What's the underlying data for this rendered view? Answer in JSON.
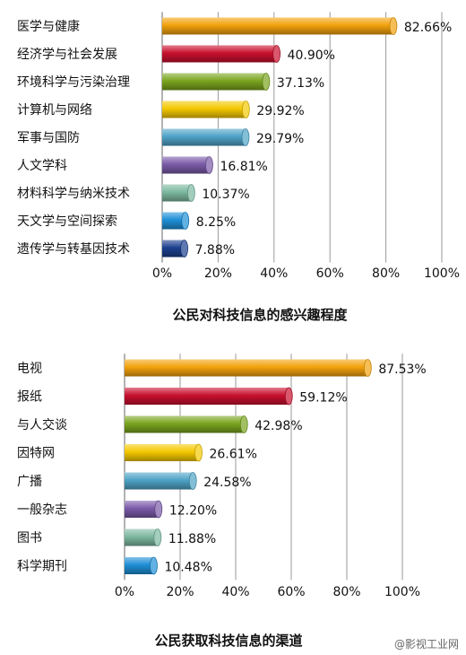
{
  "chart_data": [
    {
      "type": "bar",
      "orientation": "horizontal",
      "title": "公民对科技信息的感兴趣程度",
      "categories": [
        "医学与健康",
        "经济学与社会发展",
        "环境科学与污染治理",
        "计算机与网络",
        "军事与国防",
        "人文学科",
        "材料科学与纳米技术",
        "天文学与空间探索",
        "遗传学与转基因技术"
      ],
      "values": [
        82.66,
        40.9,
        37.13,
        29.92,
        29.79,
        16.81,
        10.37,
        8.25,
        7.88
      ],
      "value_labels": [
        "82.66%",
        "40.90%",
        "37.13%",
        "29.92%",
        "29.79%",
        "16.81%",
        "10.37%",
        "8.25%",
        "7.88%"
      ],
      "bar_colors": [
        "#f2a20c",
        "#c8102e",
        "#7aa51f",
        "#f4c800",
        "#4ea3c6",
        "#7a5aa8",
        "#7cb8a0",
        "#1e8fd6",
        "#1c3f8f"
      ],
      "xlim": [
        0,
        100
      ],
      "xticks": [
        "0%",
        "20%",
        "40%",
        "60%",
        "80%",
        "100%"
      ],
      "grid": true
    },
    {
      "type": "bar",
      "orientation": "horizontal",
      "title": "公民获取科技信息的渠道",
      "categories": [
        "电视",
        "报纸",
        "与人交谈",
        "因特网",
        "广播",
        "一般杂志",
        "图书",
        "科学期刊"
      ],
      "values": [
        87.53,
        59.12,
        42.98,
        26.61,
        24.58,
        12.2,
        11.88,
        10.48
      ],
      "value_labels": [
        "87.53%",
        "59.12%",
        "42.98%",
        "26.61%",
        "24.58%",
        "12.20%",
        "11.88%",
        "10.48%"
      ],
      "bar_colors": [
        "#f2a20c",
        "#c8102e",
        "#7aa51f",
        "#f4c800",
        "#4ea3c6",
        "#7a5aa8",
        "#7cb8a0",
        "#1e8fd6"
      ],
      "xlim": [
        0,
        100
      ],
      "xticks": [
        "0%",
        "20%",
        "40%",
        "60%",
        "80%",
        "100%"
      ],
      "grid": true
    }
  ],
  "watermark": "@影视工业网"
}
